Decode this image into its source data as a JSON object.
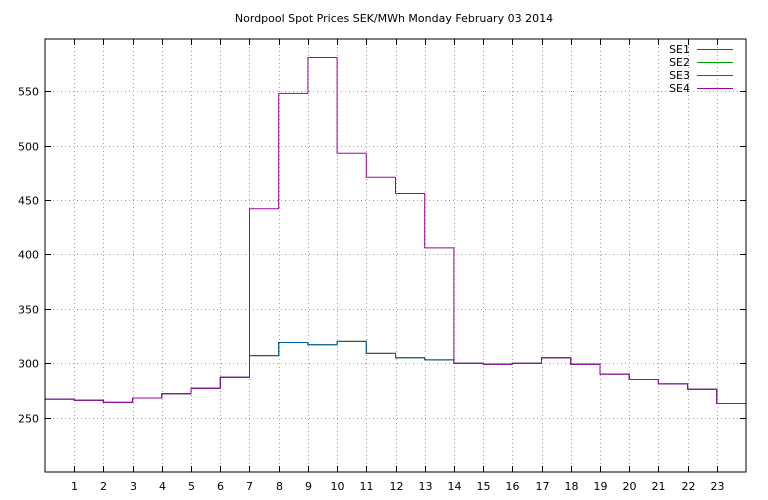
{
  "chart_data": {
    "type": "line",
    "step": true,
    "title": "Nordpool Spot Prices SEK/MWh Monday February 03 2014",
    "xlabel": "",
    "ylabel": "",
    "x": [
      0,
      1,
      2,
      3,
      4,
      5,
      6,
      7,
      8,
      9,
      10,
      11,
      12,
      13,
      14,
      15,
      16,
      17,
      18,
      19,
      20,
      21,
      22,
      23
    ],
    "x_tick_labels": [
      "1",
      "2",
      "3",
      "4",
      "5",
      "6",
      "7",
      "8",
      "9",
      "10",
      "11",
      "12",
      "13",
      "14",
      "15",
      "16",
      "17",
      "18",
      "19",
      "20",
      "21",
      "22",
      "23"
    ],
    "x_tick_values": [
      1,
      2,
      3,
      4,
      5,
      6,
      7,
      8,
      9,
      10,
      11,
      12,
      13,
      14,
      15,
      16,
      17,
      18,
      19,
      20,
      21,
      22,
      23
    ],
    "xlim": [
      0,
      24
    ],
    "y_tick_values": [
      250,
      300,
      350,
      400,
      450,
      500,
      550
    ],
    "y_tick_labels": [
      "250",
      "300",
      "350",
      "400",
      "450",
      "500",
      "550"
    ],
    "ylim": [
      200,
      598
    ],
    "grid": true,
    "legend_position": "top-right",
    "series": [
      {
        "name": "SE1",
        "color": "#ff0000",
        "values": [
          267,
          266,
          264,
          268,
          272,
          277,
          287,
          307,
          319,
          317,
          320,
          309,
          305,
          303,
          300,
          299,
          300,
          305,
          299,
          290,
          285,
          281,
          276,
          263
        ]
      },
      {
        "name": "SE2",
        "color": "#00a000",
        "values": [
          267,
          266,
          264,
          268,
          272,
          277,
          287,
          307,
          319,
          317,
          320,
          309,
          305,
          303,
          300,
          299,
          300,
          305,
          299,
          290,
          285,
          281,
          276,
          263
        ]
      },
      {
        "name": "SE3",
        "color": "#0060ad",
        "values": [
          267,
          266,
          264,
          268,
          272,
          277,
          287,
          307,
          319,
          317,
          320,
          309,
          305,
          303,
          300,
          299,
          300,
          305,
          299,
          290,
          285,
          281,
          276,
          263
        ]
      },
      {
        "name": "SE4",
        "color": "#a000a0",
        "values": [
          267,
          266,
          264,
          268,
          272,
          277,
          287,
          442,
          548,
          581,
          493,
          471,
          456,
          406,
          300,
          299,
          300,
          305,
          299,
          290,
          285,
          281,
          276,
          263
        ]
      }
    ]
  }
}
